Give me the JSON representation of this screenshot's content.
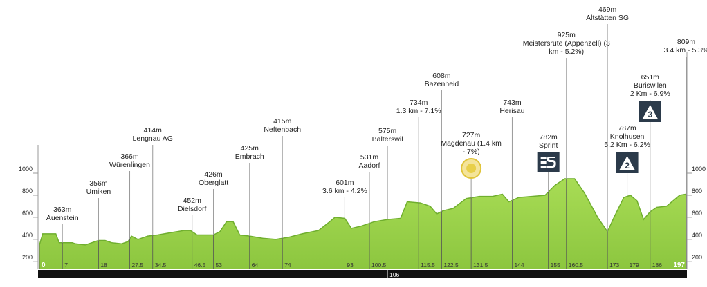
{
  "chart_data": {
    "type": "area",
    "x": [
      0,
      1,
      4,
      5,
      6,
      7,
      10,
      11,
      14,
      16,
      18,
      20,
      22,
      25,
      27,
      28,
      30,
      33,
      36,
      40,
      44,
      46,
      48,
      53,
      55,
      57,
      59,
      61,
      64,
      68,
      72,
      76,
      80,
      85,
      88,
      90,
      93,
      95,
      98,
      102,
      106,
      110,
      112,
      116,
      119,
      121,
      123,
      126,
      130,
      134,
      138,
      141,
      143,
      146,
      150,
      154,
      157,
      160,
      163,
      166,
      170,
      173,
      175,
      178,
      180,
      182,
      184,
      186,
      188,
      191,
      195,
      197
    ],
    "values": [
      350,
      450,
      450,
      450,
      370,
      370,
      370,
      360,
      350,
      370,
      390,
      390,
      370,
      360,
      380,
      430,
      400,
      430,
      440,
      460,
      480,
      480,
      440,
      440,
      470,
      560,
      560,
      440,
      430,
      410,
      400,
      420,
      450,
      480,
      550,
      600,
      590,
      500,
      520,
      560,
      580,
      590,
      740,
      730,
      700,
      630,
      660,
      680,
      770,
      790,
      790,
      810,
      740,
      780,
      790,
      800,
      890,
      950,
      950,
      820,
      600,
      470,
      600,
      780,
      800,
      750,
      580,
      650,
      690,
      700,
      800,
      810
    ],
    "color": "#97d34a",
    "xlim": [
      0,
      197
    ],
    "ylim": [
      130,
      1000
    ],
    "yticks": [
      200,
      400,
      600,
      800,
      1000
    ],
    "xticks": [
      0,
      7,
      18,
      27.5,
      34.5,
      46.5,
      53,
      64,
      74,
      93,
      100.5,
      115.5,
      122.5,
      131.5,
      144,
      155,
      160.5,
      173,
      179,
      186,
      197
    ],
    "bar_ticks": [
      106
    ],
    "annotations": [
      {
        "km": 7,
        "lines": [
          "363m",
          "Auenstein"
        ]
      },
      {
        "km": 18,
        "lines": [
          "356m",
          "Umiken"
        ]
      },
      {
        "km": 27.5,
        "lines": [
          "366m",
          "Würenlingen"
        ]
      },
      {
        "km": 34.5,
        "lines": [
          "414m",
          "Lengnau AG"
        ]
      },
      {
        "km": 46.5,
        "lines": [
          "452m",
          "Dielsdorf"
        ]
      },
      {
        "km": 53,
        "lines": [
          "426m",
          "Oberglatt"
        ]
      },
      {
        "km": 64,
        "lines": [
          "425m",
          "Embrach"
        ]
      },
      {
        "km": 74,
        "lines": [
          "415m",
          "Neftenbach"
        ]
      },
      {
        "km": 93,
        "lines": [
          "601m",
          "3.6 km - 4.2%"
        ]
      },
      {
        "km": 100.5,
        "lines": [
          "531m",
          "Aadorf"
        ]
      },
      {
        "km": 106,
        "lines": [
          "575m",
          "Balterswil"
        ]
      },
      {
        "km": 115.5,
        "lines": [
          "734m",
          "1.3 km - 7.1%"
        ]
      },
      {
        "km": 122.5,
        "lines": [
          "608m",
          "Bazenheid"
        ]
      },
      {
        "km": 131.5,
        "lines": [
          "727m",
          "Magdenau (1.4 km",
          "- 7%)"
        ]
      },
      {
        "km": 144,
        "lines": [
          "743m",
          "Herisau"
        ]
      },
      {
        "km": 155,
        "lines": [
          "782m",
          "Sprint"
        ]
      },
      {
        "km": 160.5,
        "lines": [
          "925m",
          "Meistersrüte (Appenzell) (3",
          "km - 5.2%)"
        ]
      },
      {
        "km": 173,
        "lines": [
          "469m",
          "Altstätten SG"
        ]
      },
      {
        "km": 179,
        "lines": [
          "787m",
          "Knolhusen",
          "5.2 Km - 6.2%"
        ],
        "badge": "2"
      },
      {
        "km": 186,
        "lines": [
          "651m",
          "Büriswilen",
          "2 Km - 6.9%"
        ],
        "badge": "3"
      },
      {
        "km": 197,
        "lines": [
          "809m",
          "3.4 km - 5.3%"
        ]
      }
    ]
  }
}
